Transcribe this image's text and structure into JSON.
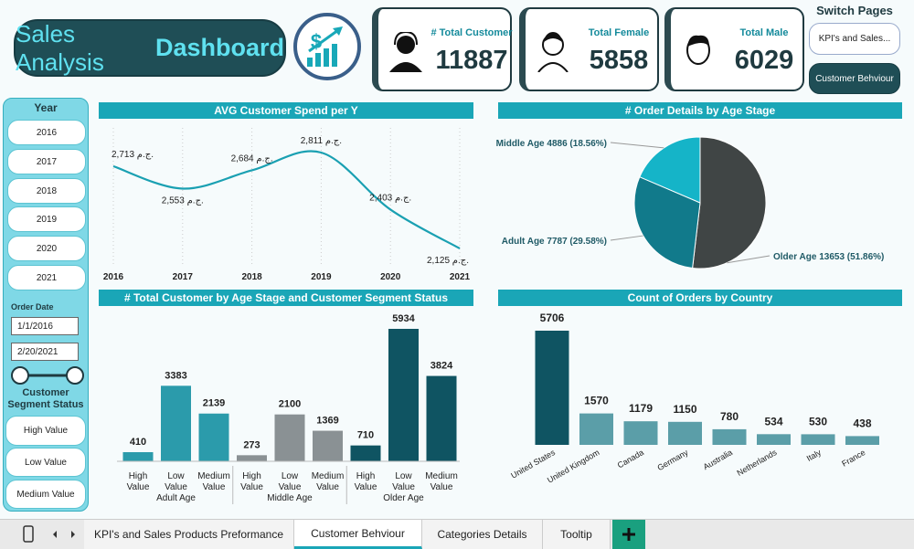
{
  "header": {
    "title_prefix": "Sales Analysis",
    "title_emphasis": "Dashboard"
  },
  "kpis": [
    {
      "title": "# Total Customer",
      "value": 11887
    },
    {
      "title": "Total Female",
      "value": 5858
    },
    {
      "title": "Total Male",
      "value": 6029
    }
  ],
  "switch_pages": {
    "title": "Switch Pages",
    "buttons": [
      "KPI's and Sales...",
      "Customer Behviour"
    ]
  },
  "slicers": {
    "year": {
      "title": "Year",
      "items": [
        "2016",
        "2017",
        "2018",
        "2019",
        "2020",
        "2021"
      ]
    },
    "order_date": {
      "title": "Order Date",
      "start": "1/1/2016",
      "end": "2/20/2021"
    },
    "segment": {
      "title": "Customer Segment Status",
      "items": [
        "High Value",
        "Low Value",
        "Medium Value"
      ]
    }
  },
  "tabs": [
    "KPI's and Sales Products Preformance",
    "Customer Behviour",
    "Categories Details",
    "Tooltip"
  ],
  "chart_data": [
    {
      "type": "line",
      "title": "AVG Customer Spend per Y",
      "color": "#1aa0b2",
      "x": [
        2016,
        2017,
        2018,
        2019,
        2020,
        2021
      ],
      "xlim": [
        2016,
        2021
      ],
      "xticks": [
        2016,
        2017,
        2018,
        2019,
        2020,
        2021
      ],
      "values": [
        2713,
        2553,
        2684,
        2811,
        2403,
        2125
      ],
      "value_labels": [
        "2,713 ج.م.",
        "2,553 ج.م.",
        "2,684 ج.م.",
        "2,811 ج.م.",
        "2,403 ج.م.",
        "2,125 ج.م."
      ]
    },
    {
      "type": "pie",
      "title": "# Order Details by Age Stage",
      "values": [
        13653,
        7787,
        4886
      ],
      "value_labels": [
        "Older Age 13653 (51.86%)",
        "Adult Age 7787 (29.58%)",
        "Middle Age 4886 (18.56%)"
      ],
      "colors": [
        "#404545",
        "#117a8b",
        "#15b4c8"
      ]
    },
    {
      "type": "grouped_bar",
      "title": "# Total Customer by Age Stage and Customer Segment Status",
      "categories": [
        "High Value",
        "Low Value",
        "Medium Value"
      ],
      "series": [
        {
          "name": "Adult Age",
          "color": "#2b9bab",
          "values": [
            410,
            3383,
            2139
          ]
        },
        {
          "name": "Middle Age",
          "color": "#8a9194",
          "values": [
            273,
            2100,
            1369
          ]
        },
        {
          "name": "Older Age",
          "color": "#0f5462",
          "values": [
            710,
            5934,
            3824
          ]
        }
      ]
    },
    {
      "type": "bar",
      "title": "Count of Orders by Country",
      "categories": [
        "United States",
        "United Kingdom",
        "Canada",
        "Germany",
        "Australia",
        "Netherlands",
        "Italy",
        "France"
      ],
      "values": [
        5706,
        1570,
        1179,
        1150,
        780,
        534,
        530,
        438
      ],
      "colors": [
        "#0f5462",
        "#5b9ea8",
        "#5b9ea8",
        "#5b9ea8",
        "#5b9ea8",
        "#5b9ea8",
        "#5b9ea8",
        "#5b9ea8"
      ]
    }
  ]
}
